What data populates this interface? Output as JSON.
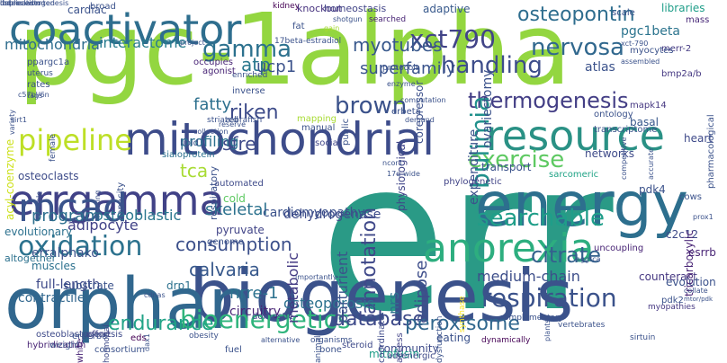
{
  "words": [
    {
      "text": "err",
      "size": 230,
      "color": "#2a9a86"
    },
    {
      "text": "pgc-1alpha",
      "size": 110,
      "color": "#93d640"
    },
    {
      "text": "biogenesis",
      "size": 80,
      "color": "#3b528b"
    },
    {
      "text": "orphan",
      "size": 78,
      "color": "#31678e"
    },
    {
      "text": "energy",
      "size": 68,
      "color": "#2d6f8e"
    },
    {
      "text": "mitochondrial",
      "size": 50,
      "color": "#3d4c8a"
    },
    {
      "text": "coactivator",
      "size": 46,
      "color": "#2e6e8e"
    },
    {
      "text": "resource",
      "size": 46,
      "color": "#2a9185"
    },
    {
      "text": "errgamma",
      "size": 46,
      "color": "#414287"
    },
    {
      "text": "anorexia",
      "size": 44,
      "color": "#2dae7f"
    },
    {
      "text": "mcad",
      "size": 44,
      "color": "#3a548c"
    },
    {
      "text": "xct790",
      "size": 28,
      "color": "#414487"
    },
    {
      "text": "osteopontin",
      "size": 22,
      "color": "#2e6d8e"
    },
    {
      "text": "nervosa",
      "size": 26,
      "color": "#31688e"
    },
    {
      "text": "handling",
      "size": 26,
      "color": "#3d4d8a"
    },
    {
      "text": "myotubes",
      "size": 20,
      "color": "#38588c"
    },
    {
      "text": "superfamily",
      "size": 18,
      "color": "#3a548c"
    },
    {
      "text": "thermogenesis",
      "size": 24,
      "color": "#433e85"
    },
    {
      "text": "brown",
      "size": 26,
      "color": "#3b528b"
    },
    {
      "text": "pipeline",
      "size": 32,
      "color": "#bddf26"
    },
    {
      "text": "gamma",
      "size": 26,
      "color": "#2c718e"
    },
    {
      "text": "exercise",
      "size": 26,
      "color": "#5ec962"
    },
    {
      "text": "oxidation",
      "size": 30,
      "color": "#2c728e"
    },
    {
      "text": "searchable",
      "size": 26,
      "color": "#1f9e89"
    },
    {
      "text": "annotation",
      "size": 22,
      "color": "#3f4889"
    },
    {
      "text": "citrate",
      "size": 24,
      "color": "#34618d"
    },
    {
      "text": "respiration",
      "size": 28,
      "color": "#3b528b"
    },
    {
      "text": "bioenergetics",
      "size": 28,
      "color": "#2fb47c"
    },
    {
      "text": "endurance",
      "size": 22,
      "color": "#20a386"
    },
    {
      "text": "database",
      "size": 22,
      "color": "#3e4a89"
    },
    {
      "text": "peroxisome",
      "size": 22,
      "color": "#31678e"
    },
    {
      "text": "consumption",
      "size": 20,
      "color": "#3c508b"
    },
    {
      "text": "calvaria",
      "size": 20,
      "color": "#38598c"
    },
    {
      "text": "skeletal",
      "size": 18,
      "color": "#2c728e"
    },
    {
      "text": "cardiomyopathy",
      "size": 14,
      "color": "#3b528b"
    },
    {
      "text": "dehydrogenase",
      "size": 14,
      "color": "#3e4c8a"
    },
    {
      "text": "tca",
      "size": 20,
      "color": "#a8db34"
    },
    {
      "text": "osteoblastic",
      "size": 16,
      "color": "#2a788e"
    },
    {
      "text": "program",
      "size": 18,
      "color": "#2d708e"
    },
    {
      "text": "adipocyte",
      "size": 16,
      "color": "#414287"
    },
    {
      "text": "nrre-1",
      "size": 18,
      "color": "#2c728e"
    },
    {
      "text": "osteoporosis",
      "size": 16,
      "color": "#2c718e"
    },
    {
      "text": "medium-chain",
      "size": 16,
      "color": "#3d4e8a"
    },
    {
      "text": "full-length",
      "size": 14,
      "color": "#3e4989"
    },
    {
      "text": "contractile",
      "size": 14,
      "color": "#31678e"
    },
    {
      "text": "circuitry",
      "size": 14,
      "color": "#482475"
    },
    {
      "text": "riken",
      "size": 22,
      "color": "#3e4c8a"
    },
    {
      "text": "sfre",
      "size": 20,
      "color": "#3e4a89"
    },
    {
      "text": "profiling",
      "size": 16,
      "color": "#2c718e"
    },
    {
      "text": "atp",
      "size": 20,
      "color": "#2a788e"
    },
    {
      "text": "ucp1",
      "size": 18,
      "color": "#3b528b"
    },
    {
      "text": "fatty",
      "size": 18,
      "color": "#2d708e"
    },
    {
      "text": "interactome",
      "size": 16,
      "color": "#287c8e"
    },
    {
      "text": "mitochondria",
      "size": 16,
      "color": "#2e6d8e"
    },
    {
      "text": "pgc1beta",
      "size": 14,
      "color": "#2b748e"
    },
    {
      "text": "adaptive",
      "size": 12,
      "color": "#38598c"
    },
    {
      "text": "cardiac",
      "size": 12,
      "color": "#3b528b"
    },
    {
      "text": "kidney",
      "size": 9,
      "color": "#440154"
    },
    {
      "text": "knockout",
      "size": 11,
      "color": "#46317e"
    },
    {
      "text": "homeostasis",
      "size": 11,
      "color": "#414487"
    },
    {
      "text": "atlas",
      "size": 14,
      "color": "#3b528b"
    },
    {
      "text": "mass",
      "size": 10,
      "color": "#482878"
    },
    {
      "text": "merr-2",
      "size": 10,
      "color": "#443983"
    },
    {
      "text": "bmp2a/b",
      "size": 10,
      "color": "#453882"
    },
    {
      "text": "mapk14",
      "size": 10,
      "color": "#453781"
    },
    {
      "text": "basal",
      "size": 12,
      "color": "#38588c"
    },
    {
      "text": "heart",
      "size": 12,
      "color": "#3e4989"
    },
    {
      "text": "pdk4",
      "size": 12,
      "color": "#3b528b"
    },
    {
      "text": "c2c12",
      "size": 12,
      "color": "#3e4a89"
    },
    {
      "text": "esrrb",
      "size": 12,
      "color": "#482475"
    },
    {
      "text": "counteract",
      "size": 12,
      "color": "#453781"
    },
    {
      "text": "evolution",
      "size": 12,
      "color": "#3b528b"
    },
    {
      "text": "myopathies",
      "size": 9,
      "color": "#453781"
    },
    {
      "text": "metabolic",
      "size": 16,
      "color": "#443a83"
    },
    {
      "text": "nrs",
      "size": 16,
      "color": "#2c738e"
    },
    {
      "text": "adipose",
      "size": 18,
      "color": "#3d4d8a"
    },
    {
      "text": "parturient",
      "size": 16,
      "color": "#3b528b"
    },
    {
      "text": "physiological",
      "size": 12,
      "color": "#404588"
    },
    {
      "text": "bulimia",
      "size": 28,
      "color": "#21918c"
    },
    {
      "text": "expenditure",
      "size": 14,
      "color": "#3b528b"
    },
    {
      "text": "corepressor",
      "size": 12,
      "color": "#3c508b"
    },
    {
      "text": "ovariectomy",
      "size": 14,
      "color": "#3b528b"
    },
    {
      "text": "transport",
      "size": 12,
      "color": "#3b528b"
    },
    {
      "text": "eating",
      "size": 12,
      "color": "#3b528b"
    },
    {
      "text": "community",
      "size": 12,
      "color": "#3e4a89"
    },
    {
      "text": "mitofusin",
      "size": 12,
      "color": "#1f9e89"
    },
    {
      "text": "bone",
      "size": 10,
      "color": "#3b528b"
    },
    {
      "text": "adrenergic",
      "size": 10,
      "color": "#3e4a89"
    },
    {
      "text": "osteoblastogenesis",
      "size": 10,
      "color": "#3e4a89"
    },
    {
      "text": "consortium",
      "size": 10,
      "color": "#3b528b"
    },
    {
      "text": "social",
      "size": 10,
      "color": "#404588"
    },
    {
      "text": "networks",
      "size": 12,
      "color": "#3e4a89"
    },
    {
      "text": "osteoclasts",
      "size": 12,
      "color": "#3e4c8a"
    },
    {
      "text": "erralphako",
      "size": 14,
      "color": "#3b528b"
    },
    {
      "text": "muscles",
      "size": 12,
      "color": "#2c718e"
    },
    {
      "text": "evolutionary",
      "size": 12,
      "color": "#2c718e"
    },
    {
      "text": "altogether",
      "size": 11,
      "color": "#2c718e"
    },
    {
      "text": "respiratory",
      "size": 11,
      "color": "#3b528b"
    },
    {
      "text": "acyl-coenzyme",
      "size": 12,
      "color": "#cde11d"
    },
    {
      "text": "pharmacological",
      "size": 10,
      "color": "#3b528b"
    },
    {
      "text": "tricarboxylic",
      "size": 12,
      "color": "#482475"
    },
    {
      "text": "uncoupling",
      "size": 10,
      "color": "#482475"
    },
    {
      "text": "sarcomeric",
      "size": 10,
      "color": "#20a386"
    },
    {
      "text": "phylogenetic",
      "size": 10,
      "color": "#414487"
    },
    {
      "text": "steroid",
      "size": 10,
      "color": "#3e4a89"
    },
    {
      "text": "coordinate",
      "size": 10,
      "color": "#3e4a89"
    },
    {
      "text": "access",
      "size": 10,
      "color": "#414287"
    },
    {
      "text": "domestic",
      "size": 10,
      "color": "#3e4a89"
    },
    {
      "text": "automated",
      "size": 10,
      "color": "#3e4a89"
    },
    {
      "text": "cold",
      "size": 12,
      "color": "#5ec962"
    },
    {
      "text": "pyruvate",
      "size": 12,
      "color": "#414487"
    },
    {
      "text": "genome",
      "size": 10,
      "color": "#3b528b"
    },
    {
      "text": "drp1",
      "size": 12,
      "color": "#2c718e"
    },
    {
      "text": "substrate",
      "size": 12,
      "color": "#3b528b"
    },
    {
      "text": "hybridization",
      "size": 10,
      "color": "#482475"
    },
    {
      "text": "eds",
      "size": 10,
      "color": "#440154"
    },
    {
      "text": "erberba",
      "size": 10,
      "color": "#3b528b"
    },
    {
      "text": "weight",
      "size": 10,
      "color": "#3b528b"
    },
    {
      "text": "white",
      "size": 10,
      "color": "#482475"
    },
    {
      "text": "effort",
      "size": 10,
      "color": "#414487"
    },
    {
      "text": "hormonal",
      "size": 9,
      "color": "#3e4a89"
    },
    {
      "text": "fuel",
      "size": 10,
      "color": "#3b528b"
    },
    {
      "text": "organisms",
      "size": 9,
      "color": "#3b528b"
    },
    {
      "text": "dynamically",
      "size": 9,
      "color": "#440154"
    },
    {
      "text": "vertebrates",
      "size": 9,
      "color": "#3b528b"
    },
    {
      "text": "sirtuin",
      "size": 9,
      "color": "#3b528b"
    },
    {
      "text": "complementary",
      "size": 9,
      "color": "#3b528b"
    },
    {
      "text": "dysfunction",
      "size": 9,
      "color": "#3b528b"
    },
    {
      "text": "synthase",
      "size": 9,
      "color": "#fde725"
    },
    {
      "text": "striated",
      "size": 9,
      "color": "#3b528b"
    },
    {
      "text": "zebrafish",
      "size": 9,
      "color": "#3b528b"
    },
    {
      "text": "mapping",
      "size": 10,
      "color": "#a8db34"
    },
    {
      "text": "manual",
      "size": 10,
      "color": "#3b528b"
    },
    {
      "text": "inverse",
      "size": 10,
      "color": "#3b528b"
    },
    {
      "text": "enriched",
      "size": 9,
      "color": "#3b528b"
    },
    {
      "text": "occupies",
      "size": 10,
      "color": "#482475"
    },
    {
      "text": "agonist",
      "size": 10,
      "color": "#482475"
    },
    {
      "text": "protocols",
      "size": 9,
      "color": "#3b528b"
    },
    {
      "text": "enzyme",
      "size": 8,
      "color": "#3b528b"
    },
    {
      "text": "public",
      "size": 10,
      "color": "#3b528b"
    },
    {
      "text": "fat",
      "size": 10,
      "color": "#3b528b"
    },
    {
      "text": "17beta-estradiol",
      "size": 9,
      "color": "#3b528b"
    },
    {
      "text": "shotgun",
      "size": 8,
      "color": "#3b528b"
    },
    {
      "text": "gain",
      "size": 8,
      "color": "#a8db34"
    },
    {
      "text": "searched",
      "size": 9,
      "color": "#482475"
    },
    {
      "text": "xct-790",
      "size": 8,
      "color": "#3b528b"
    },
    {
      "text": "assembled",
      "size": 8,
      "color": "#3b528b"
    },
    {
      "text": "myocytes",
      "size": 10,
      "color": "#3b528b"
    },
    {
      "text": "libraries",
      "size": 12,
      "color": "#1f9e89"
    },
    {
      "text": "scale",
      "size": 10,
      "color": "#3b528b"
    },
    {
      "text": "competitive",
      "size": 8,
      "color": "#3b528b"
    },
    {
      "text": "accurate",
      "size": 8,
      "color": "#3b528b"
    },
    {
      "text": "ontology",
      "size": 10,
      "color": "#3b528b"
    },
    {
      "text": "transcriptome",
      "size": 10,
      "color": "#3b528b"
    },
    {
      "text": "demand",
      "size": 8,
      "color": "#3b528b"
    },
    {
      "text": "erbeta",
      "size": 10,
      "color": "#3b528b"
    },
    {
      "text": "computation",
      "size": 8,
      "color": "#3b528b"
    },
    {
      "text": "broad",
      "size": 10,
      "color": "#3b528b"
    },
    {
      "text": "project",
      "size": 8,
      "color": "#3b528b"
    },
    {
      "text": "ppargc1a",
      "size": 10,
      "color": "#3b528b"
    },
    {
      "text": "uterus",
      "size": 9,
      "color": "#3b528b"
    },
    {
      "text": "rates",
      "size": 10,
      "color": "#3b528b"
    },
    {
      "text": "tags",
      "size": 8,
      "color": "#3b528b"
    },
    {
      "text": "variety",
      "size": 8,
      "color": "#3b528b"
    },
    {
      "text": "c57bl/6n",
      "size": 8,
      "color": "#3b528b"
    },
    {
      "text": "sirt1",
      "size": 8,
      "color": "#3b528b"
    },
    {
      "text": "enable",
      "size": 8,
      "color": "#3b528b"
    },
    {
      "text": "female",
      "size": 9,
      "color": "#3b528b"
    },
    {
      "text": "meeting",
      "size": 8,
      "color": "#3b528b"
    },
    {
      "text": "capacity",
      "size": 10,
      "color": "#3b528b"
    },
    {
      "text": "lipid",
      "size": 10,
      "color": "#3b528b"
    },
    {
      "text": "sialoprotein",
      "size": 10,
      "color": "#2c718e"
    },
    {
      "text": "reserve",
      "size": 8,
      "color": "#3b528b"
    },
    {
      "text": "collection",
      "size": 8,
      "color": "#3b528b"
    },
    {
      "text": "collate",
      "size": 8,
      "color": "#3b528b"
    },
    {
      "text": "mtor/pdk",
      "size": 7,
      "color": "#3b528b"
    },
    {
      "text": "pdk2",
      "size": 10,
      "color": "#3b528b"
    },
    {
      "text": "cows",
      "size": 10,
      "color": "#3b528b"
    },
    {
      "text": "prox1",
      "size": 8,
      "color": "#3b528b"
    },
    {
      "text": "aggtca",
      "size": 8,
      "color": "#3b528b"
    },
    {
      "text": "dax1",
      "size": 8,
      "color": "#3b528b"
    },
    {
      "text": "cdnas",
      "size": 8,
      "color": "#3b528b"
    },
    {
      "text": "obesity",
      "size": 9,
      "color": "#3b528b"
    },
    {
      "text": "alternative",
      "size": 8,
      "color": "#3b528b"
    },
    {
      "text": "animals",
      "size": 9,
      "color": "#3b528b"
    },
    {
      "text": "importantly",
      "size": 8,
      "color": "#3b528b"
    },
    {
      "text": "ncor1",
      "size": 8,
      "color": "#3b528b"
    },
    {
      "text": "17q-wide",
      "size": 8,
      "color": "#3b528b"
    },
    {
      "text": "plants",
      "size": 8,
      "color": "#3b528b"
    },
    {
      "text": "unprecedented",
      "size": 8,
      "color": "#3b528b"
    },
    {
      "text": "lbd",
      "size": 8,
      "color": "#3b528b"
    },
    {
      "text": "duplication",
      "size": 8,
      "color": "#3b528b"
    },
    {
      "text": "osteoclastogenesis",
      "size": 8,
      "color": "#3b528b"
    }
  ]
}
